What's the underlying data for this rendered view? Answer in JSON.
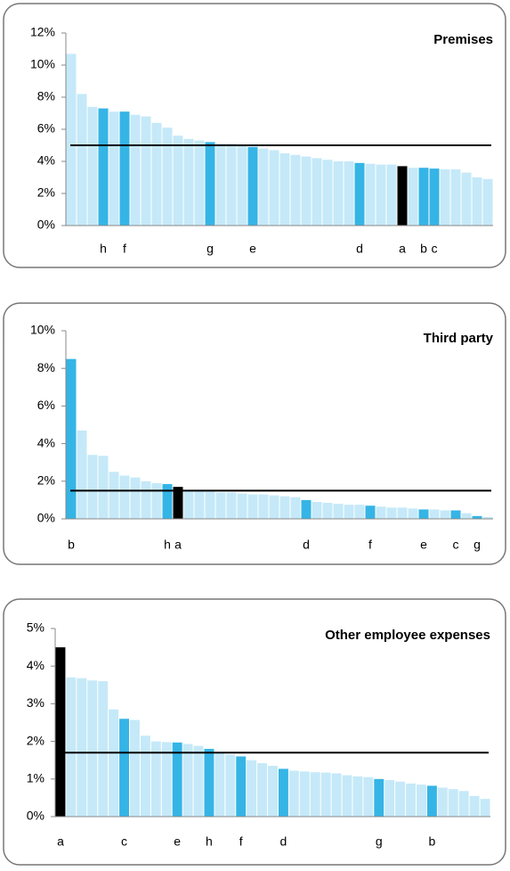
{
  "chart_data": [
    {
      "type": "bar",
      "title": "Premises",
      "categories": [
        null,
        null,
        null,
        "h",
        null,
        "f",
        null,
        null,
        null,
        null,
        null,
        null,
        null,
        "g",
        null,
        null,
        null,
        "e",
        null,
        null,
        null,
        null,
        null,
        null,
        null,
        null,
        null,
        "d",
        null,
        null,
        null,
        "a",
        null,
        "b",
        "c",
        null,
        null,
        null,
        null,
        null
      ],
      "values": [
        10.7,
        8.2,
        7.4,
        7.3,
        7.1,
        7.1,
        6.9,
        6.8,
        6.4,
        6.1,
        5.6,
        5.4,
        5.3,
        5.2,
        5.1,
        5.1,
        5.0,
        4.9,
        4.8,
        4.7,
        4.5,
        4.4,
        4.3,
        4.2,
        4.1,
        4.0,
        4.0,
        3.9,
        3.85,
        3.8,
        3.8,
        3.7,
        3.6,
        3.6,
        3.55,
        3.5,
        3.5,
        3.3,
        3.0,
        2.9
      ],
      "colors": [
        "#c5e9f8",
        "#c5e9f8",
        "#c5e9f8",
        "#35b4e6",
        "#c5e9f8",
        "#35b4e6",
        "#c5e9f8",
        "#c5e9f8",
        "#c5e9f8",
        "#c5e9f8",
        "#c5e9f8",
        "#c5e9f8",
        "#c5e9f8",
        "#35b4e6",
        "#c5e9f8",
        "#c5e9f8",
        "#c5e9f8",
        "#35b4e6",
        "#c5e9f8",
        "#c5e9f8",
        "#c5e9f8",
        "#c5e9f8",
        "#c5e9f8",
        "#c5e9f8",
        "#c5e9f8",
        "#c5e9f8",
        "#c5e9f8",
        "#35b4e6",
        "#c5e9f8",
        "#c5e9f8",
        "#c5e9f8",
        "#000000",
        "#c5e9f8",
        "#35b4e6",
        "#35b4e6",
        "#c5e9f8",
        "#c5e9f8",
        "#c5e9f8",
        "#c5e9f8",
        "#c5e9f8"
      ],
      "ylim": [
        0,
        12
      ],
      "yticks": [
        {
          "value": 0,
          "label": "0%"
        },
        {
          "value": 2,
          "label": "2%"
        },
        {
          "value": 4,
          "label": "4%"
        },
        {
          "value": 6,
          "label": "6%"
        },
        {
          "value": 8,
          "label": "8%"
        },
        {
          "value": 10,
          "label": "10%"
        },
        {
          "value": 12,
          "label": "12%"
        }
      ],
      "reference_line": 5.0
    },
    {
      "type": "bar",
      "title": "Third party",
      "categories": [
        "b",
        null,
        null,
        null,
        null,
        null,
        null,
        null,
        null,
        "h",
        "a",
        null,
        null,
        null,
        null,
        null,
        null,
        null,
        null,
        null,
        null,
        null,
        "d",
        null,
        null,
        null,
        null,
        null,
        "f",
        null,
        null,
        null,
        null,
        "e",
        null,
        null,
        "c",
        null,
        "g",
        null
      ],
      "values": [
        8.5,
        4.7,
        3.4,
        3.35,
        2.5,
        2.3,
        2.2,
        2.0,
        1.9,
        1.85,
        1.7,
        1.5,
        1.5,
        1.45,
        1.4,
        1.4,
        1.35,
        1.3,
        1.3,
        1.25,
        1.2,
        1.15,
        1.0,
        0.9,
        0.85,
        0.8,
        0.75,
        0.75,
        0.7,
        0.65,
        0.6,
        0.6,
        0.55,
        0.5,
        0.5,
        0.45,
        0.45,
        0.3,
        0.15,
        0.1
      ],
      "colors": [
        "#35b4e6",
        "#c5e9f8",
        "#c5e9f8",
        "#c5e9f8",
        "#c5e9f8",
        "#c5e9f8",
        "#c5e9f8",
        "#c5e9f8",
        "#c5e9f8",
        "#35b4e6",
        "#000000",
        "#c5e9f8",
        "#c5e9f8",
        "#c5e9f8",
        "#c5e9f8",
        "#c5e9f8",
        "#c5e9f8",
        "#c5e9f8",
        "#c5e9f8",
        "#c5e9f8",
        "#c5e9f8",
        "#c5e9f8",
        "#35b4e6",
        "#c5e9f8",
        "#c5e9f8",
        "#c5e9f8",
        "#c5e9f8",
        "#c5e9f8",
        "#35b4e6",
        "#c5e9f8",
        "#c5e9f8",
        "#c5e9f8",
        "#c5e9f8",
        "#35b4e6",
        "#c5e9f8",
        "#c5e9f8",
        "#35b4e6",
        "#c5e9f8",
        "#35b4e6",
        "#c5e9f8"
      ],
      "ylim": [
        0,
        10
      ],
      "yticks": [
        {
          "value": 0,
          "label": "0%"
        },
        {
          "value": 2,
          "label": "2%"
        },
        {
          "value": 4,
          "label": "4%"
        },
        {
          "value": 6,
          "label": "6%"
        },
        {
          "value": 8,
          "label": "8%"
        },
        {
          "value": 10,
          "label": "10%"
        }
      ],
      "reference_line": 1.5
    },
    {
      "type": "bar",
      "title": "Other employee expenses",
      "categories": [
        "a",
        null,
        null,
        null,
        null,
        null,
        "c",
        null,
        null,
        null,
        null,
        "e",
        null,
        null,
        "h",
        null,
        null,
        "f",
        null,
        null,
        null,
        "d",
        null,
        null,
        null,
        null,
        null,
        null,
        null,
        null,
        "g",
        null,
        null,
        null,
        null,
        "b",
        null,
        null,
        null,
        null,
        null
      ],
      "values": [
        4.5,
        3.7,
        3.68,
        3.62,
        3.6,
        2.85,
        2.6,
        2.57,
        2.15,
        2.0,
        1.98,
        1.97,
        1.93,
        1.88,
        1.8,
        1.7,
        1.65,
        1.6,
        1.5,
        1.42,
        1.35,
        1.27,
        1.22,
        1.2,
        1.18,
        1.17,
        1.15,
        1.1,
        1.07,
        1.05,
        1.0,
        0.97,
        0.93,
        0.88,
        0.85,
        0.82,
        0.77,
        0.73,
        0.68,
        0.55,
        0.47
      ],
      "colors": [
        "#000000",
        "#c5e9f8",
        "#c5e9f8",
        "#c5e9f8",
        "#c5e9f8",
        "#c5e9f8",
        "#35b4e6",
        "#c5e9f8",
        "#c5e9f8",
        "#c5e9f8",
        "#c5e9f8",
        "#35b4e6",
        "#c5e9f8",
        "#c5e9f8",
        "#35b4e6",
        "#c5e9f8",
        "#c5e9f8",
        "#35b4e6",
        "#c5e9f8",
        "#c5e9f8",
        "#c5e9f8",
        "#35b4e6",
        "#c5e9f8",
        "#c5e9f8",
        "#c5e9f8",
        "#c5e9f8",
        "#c5e9f8",
        "#c5e9f8",
        "#c5e9f8",
        "#c5e9f8",
        "#35b4e6",
        "#c5e9f8",
        "#c5e9f8",
        "#c5e9f8",
        "#c5e9f8",
        "#35b4e6",
        "#c5e9f8",
        "#c5e9f8",
        "#c5e9f8",
        "#c5e9f8",
        "#c5e9f8"
      ],
      "ylim": [
        0,
        5
      ],
      "yticks": [
        {
          "value": 0,
          "label": "0%"
        },
        {
          "value": 1,
          "label": "1%"
        },
        {
          "value": 2,
          "label": "2%"
        },
        {
          "value": 3,
          "label": "3%"
        },
        {
          "value": 4,
          "label": "4%"
        },
        {
          "value": 5,
          "label": "5%"
        }
      ],
      "reference_line": 1.7
    }
  ]
}
